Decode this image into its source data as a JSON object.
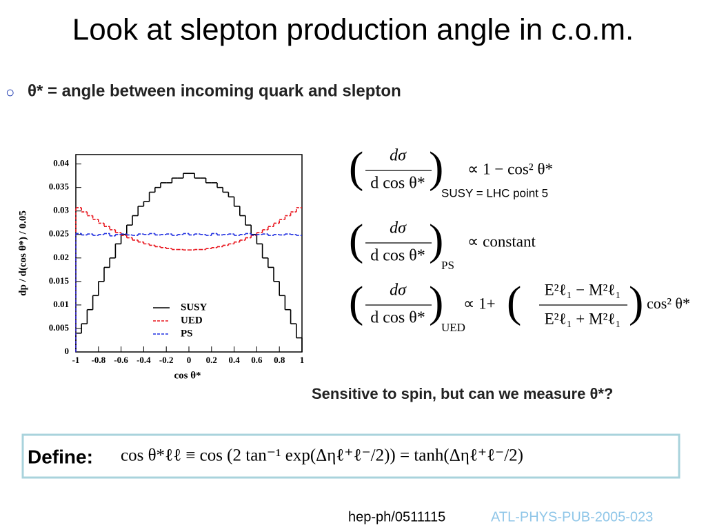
{
  "title": "Look at slepton production angle in c.o.m.",
  "bullet": "θ* = angle between incoming quark and slepton",
  "chart_data": {
    "type": "histogram",
    "xlabel": "cos θ*",
    "ylabel": "dp / d(cos θ*) / 0.05",
    "bins": [
      -1,
      -0.95,
      -0.9,
      -0.85,
      -0.8,
      -0.75,
      -0.7,
      -0.65,
      -0.6,
      -0.55,
      -0.5,
      -0.45,
      -0.4,
      -0.35,
      -0.3,
      -0.25,
      -0.2,
      -0.15,
      -0.1,
      -0.05,
      0,
      0.05,
      0.1,
      0.15,
      0.2,
      0.25,
      0.3,
      0.35,
      0.4,
      0.45,
      0.5,
      0.55,
      0.6,
      0.65,
      0.7,
      0.75,
      0.8,
      0.85,
      0.9,
      0.95,
      1
    ],
    "series": [
      {
        "name": "SUSY",
        "color": "#000000",
        "linestyle": "solid",
        "values": [
          0.004,
          0.006,
          0.009,
          0.012,
          0.015,
          0.018,
          0.02,
          0.023,
          0.025,
          0.027,
          0.029,
          0.031,
          0.032,
          0.034,
          0.035,
          0.036,
          0.036,
          0.037,
          0.037,
          0.038,
          0.038,
          0.037,
          0.037,
          0.036,
          0.036,
          0.035,
          0.034,
          0.033,
          0.031,
          0.029,
          0.027,
          0.025,
          0.023,
          0.02,
          0.018,
          0.015,
          0.012,
          0.009,
          0.006,
          0.003
        ]
      },
      {
        "name": "UED",
        "color": "#e8141c",
        "linestyle": "dashed",
        "values": [
          0.0307,
          0.0298,
          0.029,
          0.0282,
          0.0274,
          0.0267,
          0.026,
          0.0254,
          0.0248,
          0.0243,
          0.0238,
          0.0234,
          0.023,
          0.0227,
          0.0224,
          0.0222,
          0.022,
          0.0218,
          0.0218,
          0.0217,
          0.0217,
          0.0218,
          0.0218,
          0.022,
          0.0222,
          0.0224,
          0.0227,
          0.023,
          0.0234,
          0.0238,
          0.0243,
          0.0248,
          0.0254,
          0.026,
          0.0267,
          0.0274,
          0.0282,
          0.029,
          0.0298,
          0.0307
        ]
      },
      {
        "name": "PS",
        "color": "#1f2ee0",
        "linestyle": "dashed",
        "values": [
          0.0252,
          0.0249,
          0.0251,
          0.0248,
          0.025,
          0.0252,
          0.0247,
          0.025,
          0.0251,
          0.0249,
          0.0248,
          0.0251,
          0.025,
          0.0252,
          0.0249,
          0.025,
          0.0251,
          0.0248,
          0.025,
          0.0252,
          0.0249,
          0.0251,
          0.025,
          0.0248,
          0.0252,
          0.0249,
          0.025,
          0.0251,
          0.0248,
          0.025,
          0.0252,
          0.0249,
          0.025,
          0.0251,
          0.0248,
          0.025,
          0.0249,
          0.0251,
          0.025,
          0.0248
        ]
      }
    ],
    "xlim": [
      -1,
      1
    ],
    "xticks": [
      -1,
      -0.8,
      -0.6,
      -0.4,
      -0.2,
      0,
      0.2,
      0.4,
      0.6,
      0.8,
      1
    ],
    "ylim": [
      0,
      0.042
    ],
    "yticks": [
      0,
      0.005,
      0.01,
      0.015,
      0.02,
      0.025,
      0.03,
      0.035,
      0.04
    ],
    "grid": false
  },
  "equations": [
    {
      "numerator": "dσ",
      "denominator": "d cos θ*",
      "subscript": "SUSY = LHC point 5",
      "rhs": "∝ 1 − cos² θ*"
    },
    {
      "numerator": "dσ",
      "denominator": "d cos θ*",
      "subscript": "PS",
      "rhs": "∝ constant"
    },
    {
      "numerator": "dσ",
      "denominator": "d cos θ*",
      "subscript": "UED",
      "rhs": "∝ 1+",
      "rhs_numerator": "E²ℓ₁ − M²ℓ₁",
      "rhs_denominator": "E²ℓ₁ + M²ℓ₁",
      "rhs_suffix": "cos² θ*"
    }
  ],
  "note": "Sensitive to spin, but can we measure θ*?",
  "define": {
    "label": "Define:",
    "formula": "cos θ*ℓℓ ≡ cos (2 tan⁻¹ exp(Δηℓ⁺ℓ⁻/2))  = tanh(Δηℓ⁺ℓ⁻/2)"
  },
  "refs": [
    "hep-ph/0511115",
    "ATL-PHYS-PUB-2005-023"
  ]
}
